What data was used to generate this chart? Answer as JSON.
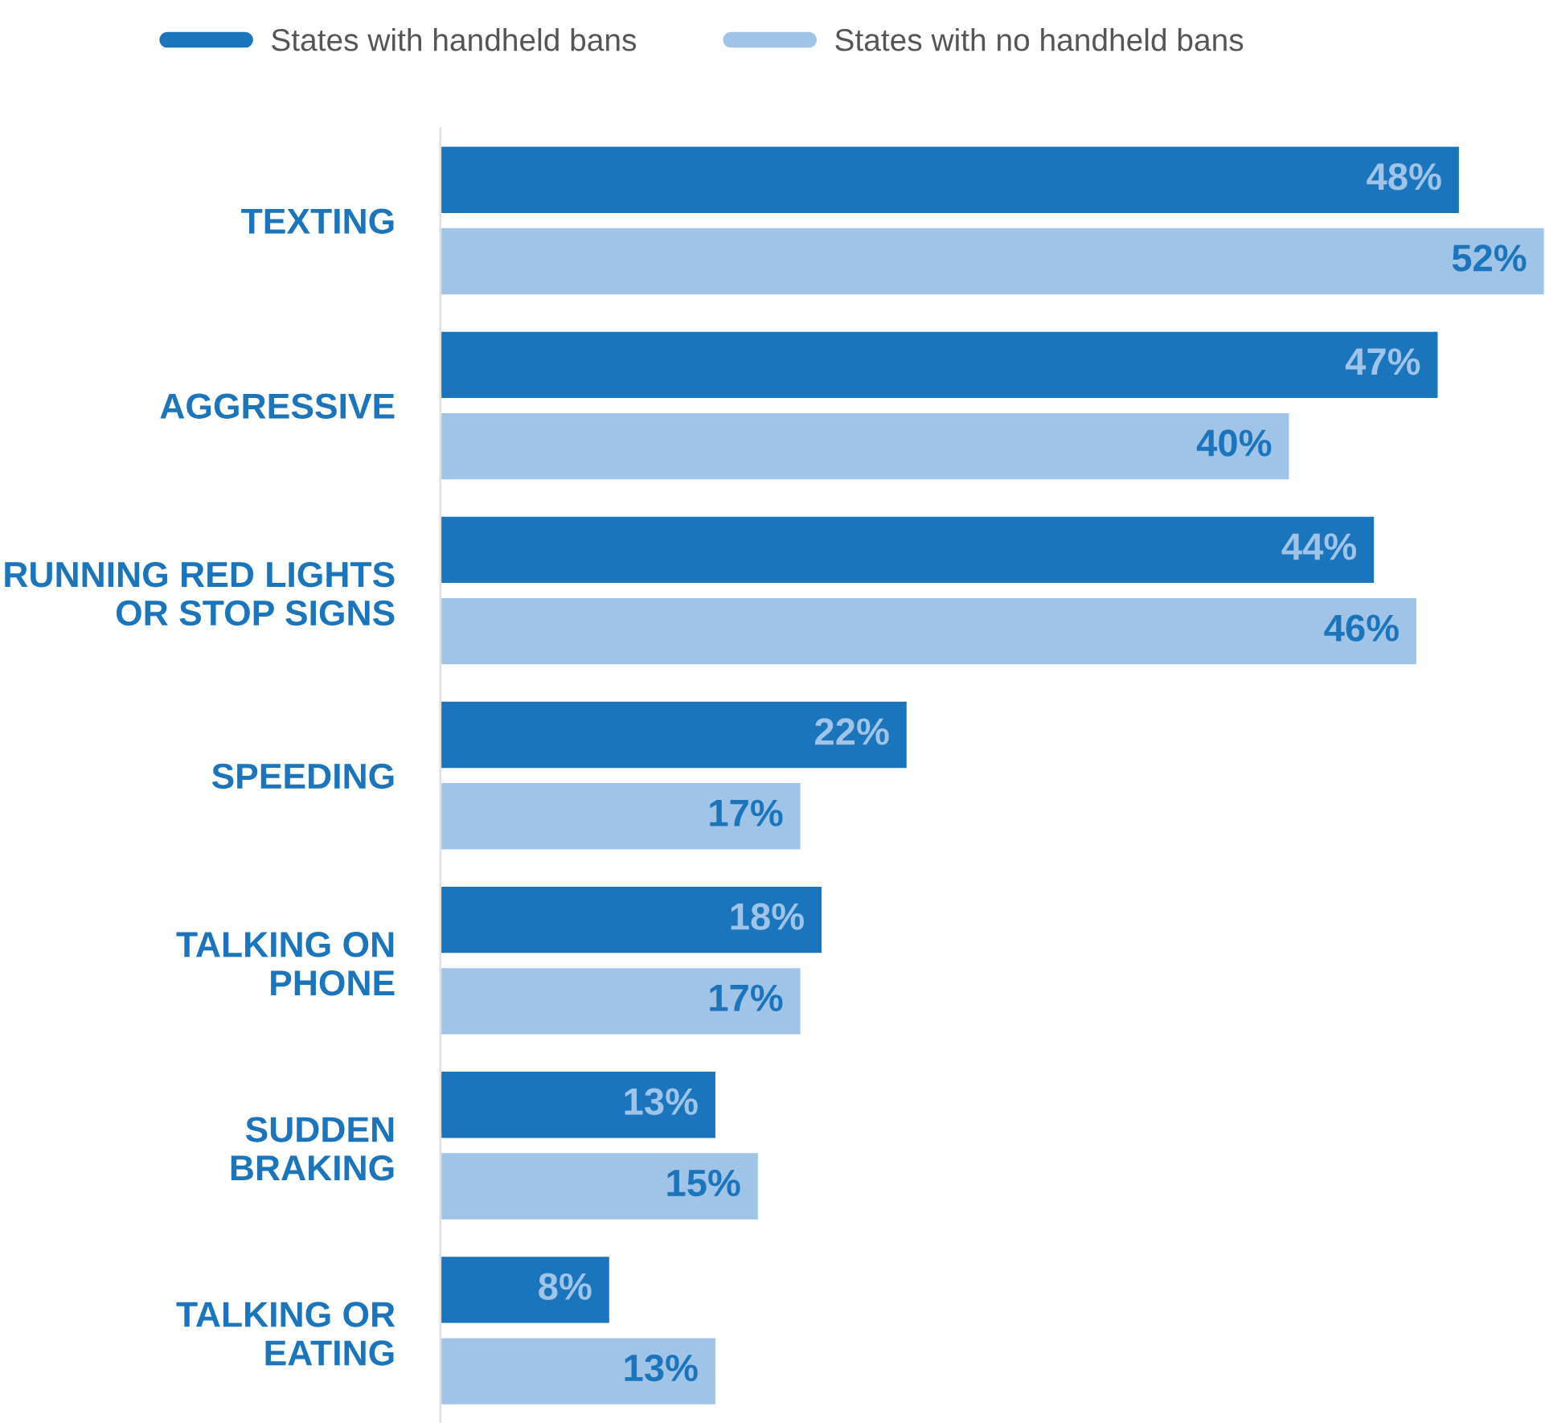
{
  "chart_data": {
    "type": "bar",
    "orientation": "horizontal",
    "categories": [
      "TEXTING",
      "AGGRESSIVE",
      "RUNNING RED LIGHTS\nOR STOP SIGNS",
      "SPEEDING",
      "TALKING ON\nPHONE",
      "SUDDEN\nBRAKING",
      "TALKING OR\nEATING"
    ],
    "series": [
      {
        "name": "States with handheld bans",
        "color": "#1b75bc",
        "values": [
          48,
          47,
          44,
          22,
          18,
          13,
          8
        ],
        "value_labels": [
          "48%",
          "47%",
          "44%",
          "22%",
          "18%",
          "13%",
          "8%"
        ]
      },
      {
        "name": "States with no handheld bans",
        "color": "#a0c4e8",
        "values": [
          52,
          40,
          46,
          17,
          17,
          15,
          13
        ],
        "value_labels": [
          "52%",
          "40%",
          "46%",
          "17%",
          "17%",
          "15%",
          "13%"
        ]
      }
    ],
    "xlim": [
      0,
      52
    ],
    "tick_labels": "y",
    "legend": "top left",
    "grid": false
  }
}
